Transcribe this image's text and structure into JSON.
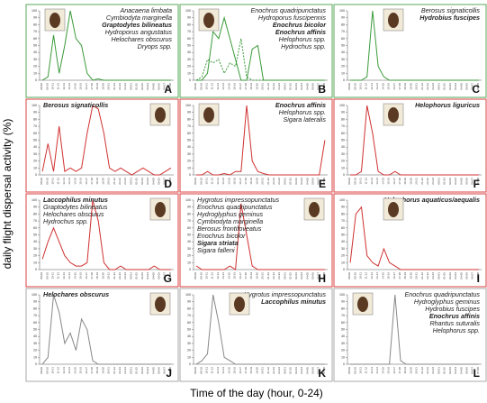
{
  "y_label": "daily flight dispersal activity (%)",
  "x_label": "Time of the day (hour, 0-24)",
  "categories": [
    "08-09",
    "09-10",
    "10-11",
    "11-12",
    "12-13",
    "13-14",
    "14-15",
    "15-16",
    "16-17",
    "17-18",
    "18-19",
    "19-20",
    "20-21",
    "21-22",
    "22-23",
    "23-24",
    "00-01",
    "01-02",
    "02-03",
    "03-04",
    "04-05",
    "05-06",
    "06-07",
    "07-08"
  ],
  "ylim": [
    0,
    100
  ],
  "yticks": [
    0,
    10,
    20,
    30,
    40,
    50,
    60,
    70,
    80,
    90,
    100
  ],
  "chart_data": [
    {
      "type": "line",
      "letter": "A",
      "align": "right",
      "frame": "#5aa85a",
      "species": [
        {
          "text": "Anacaena limbata",
          "bold": false
        },
        {
          "text": "Cymbiodyta marginella",
          "bold": false
        },
        {
          "text": "Graptodytes bilineatus",
          "bold": true
        },
        {
          "text": "Hydroporus angustatus",
          "bold": false
        },
        {
          "text": "Helochares obscurus",
          "bold": false
        },
        {
          "text": "Dryops spp.",
          "bold": false
        }
      ],
      "series": [
        {
          "color": "#3a9a3a",
          "dashed": false,
          "values": [
            0,
            5,
            65,
            10,
            50,
            100,
            60,
            50,
            10,
            0,
            2,
            0,
            0,
            0,
            0,
            0,
            0,
            0,
            0,
            0,
            0,
            0,
            0,
            0
          ]
        }
      ]
    },
    {
      "type": "line",
      "letter": "B",
      "align": "right",
      "frame": "#5aa85a",
      "species": [
        {
          "text": "Enochrus quadripunctatus",
          "bold": false
        },
        {
          "text": "Hydroporus fuscipennis",
          "bold": false
        },
        {
          "text": "Enochrus bicolor",
          "bold": true
        },
        {
          "text": "Enochrus affinis",
          "bold": true
        },
        {
          "text": "Helophorus spp.",
          "bold": false
        },
        {
          "text": "Hydrochus spp.",
          "bold": false
        }
      ],
      "series": [
        {
          "color": "#3a9a3a",
          "dashed": false,
          "values": [
            0,
            0,
            10,
            70,
            60,
            90,
            60,
            30,
            0,
            0,
            45,
            50,
            0,
            0,
            0,
            0,
            0,
            0,
            0,
            0,
            0,
            0,
            0,
            0
          ]
        },
        {
          "color": "#3a9a3a",
          "dashed": true,
          "values": [
            0,
            5,
            30,
            25,
            30,
            10,
            25,
            20,
            60,
            5,
            0,
            0,
            0,
            0,
            0,
            0,
            0,
            0,
            0,
            0,
            0,
            0,
            0,
            0
          ]
        }
      ]
    },
    {
      "type": "line",
      "letter": "C",
      "align": "right",
      "frame": "#5aa85a",
      "species": [
        {
          "text": "Berosus signaticollis",
          "bold": false
        },
        {
          "text": "Hydrobius fuscipes",
          "bold": true
        }
      ],
      "series": [
        {
          "color": "#3a9a3a",
          "dashed": false,
          "values": [
            0,
            0,
            0,
            5,
            100,
            20,
            5,
            0,
            0,
            0,
            0,
            0,
            0,
            0,
            0,
            0,
            0,
            0,
            0,
            0,
            0,
            0,
            0,
            0
          ]
        }
      ]
    },
    {
      "type": "line",
      "letter": "D",
      "align": "left",
      "frame": "#d84040",
      "species": [
        {
          "text": "Berosus signaticollis",
          "bold": true
        }
      ],
      "series": [
        {
          "color": "#d03030",
          "dashed": false,
          "values": [
            5,
            45,
            5,
            70,
            5,
            10,
            5,
            10,
            60,
            100,
            95,
            60,
            10,
            5,
            10,
            5,
            0,
            5,
            10,
            5,
            0,
            0,
            5,
            10
          ]
        }
      ]
    },
    {
      "type": "line",
      "letter": "E",
      "align": "right",
      "frame": "#d84040",
      "species": [
        {
          "text": "Enochrus affinis",
          "bold": true
        },
        {
          "text": "Helophorus spp.",
          "bold": false
        },
        {
          "text": "Sigara lateralis",
          "bold": false
        }
      ],
      "series": [
        {
          "color": "#d03030",
          "dashed": false,
          "values": [
            0,
            0,
            5,
            0,
            0,
            2,
            0,
            5,
            5,
            100,
            20,
            5,
            2,
            0,
            0,
            0,
            0,
            0,
            0,
            0,
            0,
            0,
            0,
            50
          ]
        }
      ]
    },
    {
      "type": "line",
      "letter": "F",
      "align": "right",
      "frame": "#d84040",
      "species": [
        {
          "text": "Helophorus liguricus",
          "bold": true
        }
      ],
      "series": [
        {
          "color": "#d03030",
          "dashed": false,
          "values": [
            0,
            0,
            5,
            100,
            60,
            5,
            0,
            0,
            5,
            0,
            0,
            0,
            0,
            0,
            0,
            0,
            0,
            0,
            0,
            0,
            0,
            0,
            0,
            0
          ]
        }
      ]
    },
    {
      "type": "line",
      "letter": "G",
      "align": "left",
      "frame": "#d84040",
      "species": [
        {
          "text": "Laccophilus minutus",
          "bold": true
        },
        {
          "text": "Graptodytes bilineatus",
          "bold": false
        },
        {
          "text": "Helochares obscurus",
          "bold": false
        },
        {
          "text": "Hydrochus spp.",
          "bold": false
        }
      ],
      "series": [
        {
          "color": "#d03030",
          "dashed": false,
          "values": [
            15,
            40,
            60,
            40,
            20,
            10,
            5,
            5,
            10,
            100,
            70,
            10,
            0,
            0,
            5,
            0,
            0,
            0,
            0,
            0,
            5,
            0,
            0,
            0
          ]
        }
      ]
    },
    {
      "type": "line",
      "letter": "H",
      "align": "left",
      "frame": "#d84040",
      "species": [
        {
          "text": "Hygrotus impressopunctatus",
          "bold": false
        },
        {
          "text": "Enochrus quadripunctatus",
          "bold": false
        },
        {
          "text": "Hydroglyphus geminus",
          "bold": false
        },
        {
          "text": "Cymbiodyta marginella",
          "bold": false
        },
        {
          "text": "Berosus frontifoveatus",
          "bold": false
        },
        {
          "text": "Enochrus bicolor",
          "bold": false
        },
        {
          "text": "Sigara striata",
          "bold": true
        },
        {
          "text": "Sigara falleni",
          "bold": false
        }
      ],
      "series": [
        {
          "color": "#d03030",
          "dashed": false,
          "values": [
            5,
            0,
            0,
            0,
            0,
            0,
            5,
            0,
            95,
            50,
            5,
            0,
            0,
            0,
            0,
            0,
            0,
            0,
            0,
            0,
            0,
            0,
            0,
            0
          ]
        }
      ]
    },
    {
      "type": "line",
      "letter": "I",
      "align": "right",
      "frame": "#d84040",
      "species": [
        {
          "text": "Helophorus aquaticus/aequalis",
          "bold": true
        }
      ],
      "series": [
        {
          "color": "#d03030",
          "dashed": false,
          "values": [
            10,
            80,
            90,
            20,
            10,
            5,
            30,
            10,
            5,
            0,
            0,
            0,
            0,
            0,
            0,
            0,
            0,
            0,
            0,
            0,
            0,
            0,
            0,
            0
          ]
        }
      ]
    },
    {
      "type": "line",
      "letter": "J",
      "align": "left",
      "frame": "#aaaaaa",
      "species": [
        {
          "text": "Helochares obscurus",
          "bold": true
        }
      ],
      "series": [
        {
          "color": "#888888",
          "dashed": false,
          "values": [
            0,
            10,
            100,
            75,
            30,
            45,
            20,
            65,
            50,
            5,
            0,
            0,
            0,
            0,
            0,
            0,
            0,
            0,
            0,
            0,
            0,
            0,
            0,
            0
          ]
        }
      ]
    },
    {
      "type": "line",
      "letter": "K",
      "align": "right",
      "frame": "#aaaaaa",
      "species": [
        {
          "text": "Hygrotus impressopunctatus",
          "bold": false
        },
        {
          "text": "Laccophilus minutus",
          "bold": true
        }
      ],
      "series": [
        {
          "color": "#888888",
          "dashed": false,
          "values": [
            0,
            5,
            15,
            100,
            60,
            10,
            5,
            0,
            0,
            0,
            0,
            0,
            0,
            0,
            0,
            0,
            0,
            0,
            0,
            0,
            0,
            0,
            0,
            0
          ]
        }
      ]
    },
    {
      "type": "line",
      "letter": "L",
      "align": "right",
      "frame": "#aaaaaa",
      "species": [
        {
          "text": "Enochrus quadripunctatus",
          "bold": false
        },
        {
          "text": "Hydroglyphus geminus",
          "bold": false
        },
        {
          "text": "Hydrobius fuscipes",
          "bold": false
        },
        {
          "text": "Enochrus affinis",
          "bold": true
        },
        {
          "text": "Rhantus suturalis",
          "bold": false
        },
        {
          "text": "Helophorus spp.",
          "bold": false
        }
      ],
      "series": [
        {
          "color": "#888888",
          "dashed": false,
          "values": [
            0,
            0,
            0,
            0,
            0,
            0,
            0,
            0,
            100,
            5,
            0,
            0,
            0,
            0,
            0,
            0,
            0,
            0,
            0,
            0,
            0,
            0,
            0,
            0
          ]
        }
      ]
    }
  ]
}
